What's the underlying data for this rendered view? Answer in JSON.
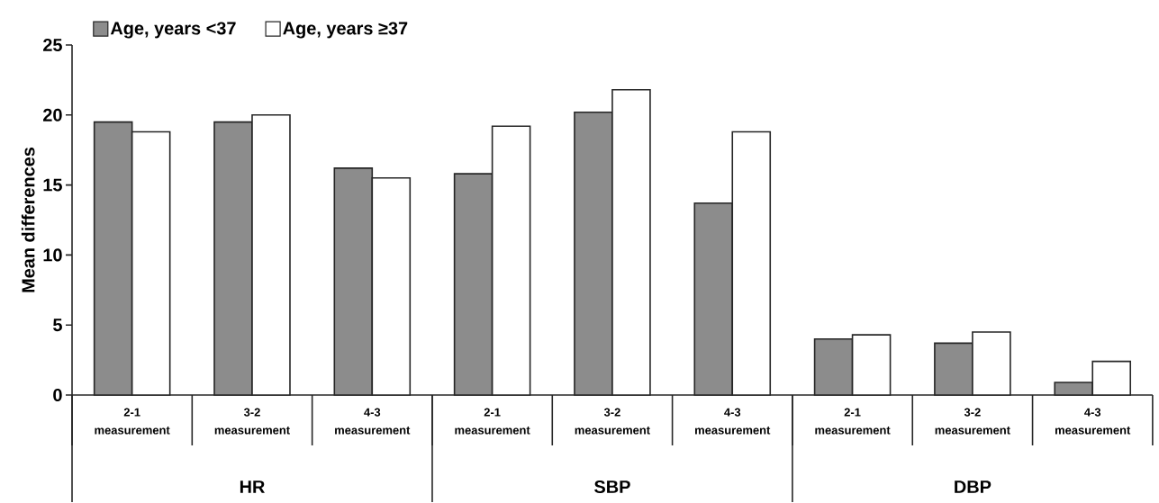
{
  "chart_data": {
    "type": "bar",
    "ylabel": "Mean differences",
    "categories": [
      "**2-1** measurement",
      "**3-2** measurement",
      "**4-3** measurement",
      "**2-1** measurement",
      "**3-2** measurement",
      "**4-3** measurement",
      "**2-1** measurement",
      "**3-2** measurement",
      "**4-3** measurement"
    ],
    "series": [
      {
        "name": "Age, years <37",
        "color": "#8c8c8c",
        "values": [
          19.5,
          19.5,
          16.2,
          15.8,
          20.2,
          13.7,
          4.0,
          3.7,
          0.9
        ]
      },
      {
        "name": "Age, years ≥37",
        "color": "#ffffff",
        "values": [
          18.8,
          20.0,
          15.5,
          19.2,
          21.8,
          18.8,
          4.3,
          4.5,
          2.4
        ]
      }
    ],
    "annotations": [
      "HR",
      "SBP",
      "DBP"
    ],
    "ylim": [
      0,
      25
    ],
    "yticks": [
      0,
      5,
      10,
      15,
      20,
      25
    ],
    "grid": false,
    "legend": "top left"
  }
}
